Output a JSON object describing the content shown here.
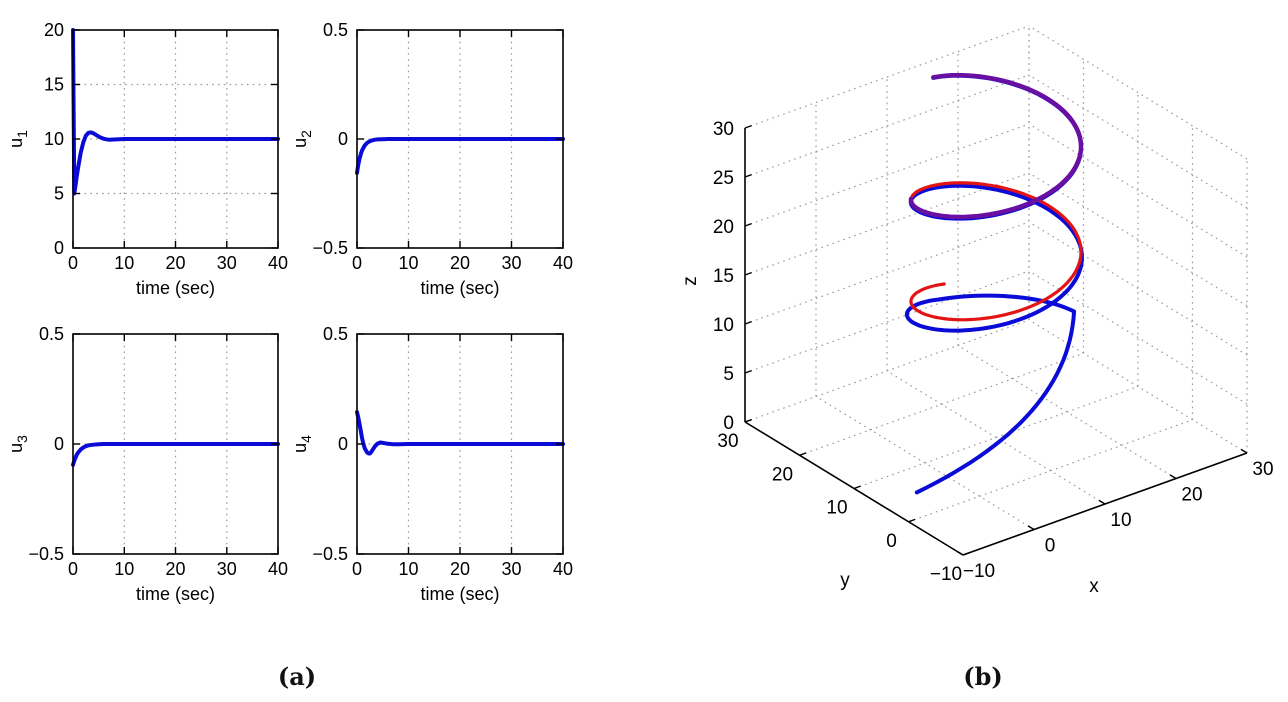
{
  "figure": {
    "background": "#ffffff",
    "captions": {
      "a": "(a)",
      "b": "(b)"
    },
    "colors": {
      "trajectory_blue": "#0b0bd8",
      "reference_red": "#e31414",
      "overlap_purple": "#690fa2",
      "grid_dotted": "#9a9a9a",
      "axis_black": "#000000"
    }
  },
  "chart_data": [
    {
      "id": "u1",
      "type": "line",
      "xlabel": "time (sec)",
      "ylabel": "u_1",
      "ylabel_base": "u",
      "ylabel_sub": "1",
      "xlim": [
        0,
        40
      ],
      "ylim": [
        0,
        20
      ],
      "xticks": [
        0,
        10,
        20,
        30,
        40
      ],
      "yticks": [
        0,
        5,
        10,
        15,
        20
      ],
      "grid": "dotted",
      "series": [
        {
          "name": "u1",
          "color": "#0b0bd8",
          "points": [
            [
              0,
              20
            ],
            [
              0.25,
              5
            ],
            [
              0.5,
              5.8
            ],
            [
              0.75,
              6.6
            ],
            [
              1,
              7.37
            ],
            [
              1.5,
              8.73
            ],
            [
              2,
              9.7
            ],
            [
              2.5,
              10.29
            ],
            [
              3,
              10.57
            ],
            [
              3.5,
              10.61
            ],
            [
              4,
              10.52
            ],
            [
              4.5,
              10.38
            ],
            [
              5,
              10.23
            ],
            [
              5.5,
              10.11
            ],
            [
              6,
              10.02
            ],
            [
              6.5,
              9.97
            ],
            [
              7,
              9.94
            ],
            [
              8,
              9.95
            ],
            [
              9,
              9.98
            ],
            [
              10,
              10
            ],
            [
              12,
              10
            ],
            [
              15,
              10
            ],
            [
              20,
              10
            ],
            [
              25,
              10
            ],
            [
              30,
              10
            ],
            [
              35,
              10
            ],
            [
              40,
              10
            ]
          ]
        }
      ]
    },
    {
      "id": "u2",
      "type": "line",
      "xlabel": "time (sec)",
      "ylabel": "u_2",
      "ylabel_base": "u",
      "ylabel_sub": "2",
      "xlim": [
        0,
        40
      ],
      "ylim": [
        -0.5,
        0.5
      ],
      "xticks": [
        0,
        10,
        20,
        30,
        40
      ],
      "yticks": [
        -0.5,
        0,
        0.5
      ],
      "grid": "dotted",
      "series": [
        {
          "name": "u2",
          "color": "#0b0bd8",
          "points": [
            [
              0,
              -0.155
            ],
            [
              0.25,
              -0.118
            ],
            [
              0.5,
              -0.089
            ],
            [
              0.75,
              -0.068
            ],
            [
              1,
              -0.052
            ],
            [
              1.5,
              -0.03
            ],
            [
              2,
              -0.017
            ],
            [
              2.5,
              -0.01
            ],
            [
              3,
              -0.006
            ],
            [
              3.5,
              -0.003
            ],
            [
              4,
              -0.002
            ],
            [
              5,
              -0.001
            ],
            [
              6,
              0
            ],
            [
              8,
              0
            ],
            [
              10,
              0
            ],
            [
              15,
              0
            ],
            [
              20,
              0
            ],
            [
              25,
              0
            ],
            [
              30,
              0
            ],
            [
              35,
              0
            ],
            [
              40,
              0
            ]
          ]
        }
      ]
    },
    {
      "id": "u3",
      "type": "line",
      "xlabel": "time (sec)",
      "ylabel": "u_3",
      "ylabel_base": "u",
      "ylabel_sub": "3",
      "xlim": [
        0,
        40
      ],
      "ylim": [
        -0.5,
        0.5
      ],
      "xticks": [
        0,
        10,
        20,
        30,
        40
      ],
      "yticks": [
        -0.5,
        0,
        0.5
      ],
      "grid": "dotted",
      "series": [
        {
          "name": "u3",
          "color": "#0b0bd8",
          "points": [
            [
              0,
              -0.095
            ],
            [
              0.25,
              -0.076
            ],
            [
              0.5,
              -0.061
            ],
            [
              0.75,
              -0.048
            ],
            [
              1,
              -0.039
            ],
            [
              1.5,
              -0.025
            ],
            [
              2,
              -0.016
            ],
            [
              2.5,
              -0.01
            ],
            [
              3,
              -0.006
            ],
            [
              4,
              -0.003
            ],
            [
              5,
              -0.001
            ],
            [
              6,
              0
            ],
            [
              8,
              0
            ],
            [
              10,
              0
            ],
            [
              15,
              0
            ],
            [
              20,
              0
            ],
            [
              25,
              0
            ],
            [
              30,
              0
            ],
            [
              35,
              0
            ],
            [
              40,
              0
            ]
          ]
        }
      ]
    },
    {
      "id": "u4",
      "type": "line",
      "xlabel": "time (sec)",
      "ylabel": "u_4",
      "ylabel_base": "u",
      "ylabel_sub": "4",
      "xlim": [
        0,
        40
      ],
      "ylim": [
        -0.5,
        0.5
      ],
      "xticks": [
        0,
        10,
        20,
        30,
        40
      ],
      "yticks": [
        -0.5,
        0,
        0.5
      ],
      "grid": "dotted",
      "series": [
        {
          "name": "u4",
          "color": "#0b0bd8",
          "points": [
            [
              0,
              0.145
            ],
            [
              0.25,
              0.12
            ],
            [
              0.5,
              0.089
            ],
            [
              0.75,
              0.057
            ],
            [
              1,
              0.026
            ],
            [
              1.25,
              0.001
            ],
            [
              1.5,
              -0.019
            ],
            [
              1.75,
              -0.03
            ],
            [
              2,
              -0.039
            ],
            [
              2.25,
              -0.043
            ],
            [
              2.5,
              -0.043
            ],
            [
              2.75,
              -0.037
            ],
            [
              3,
              -0.028
            ],
            [
              3.5,
              -0.01
            ],
            [
              4,
              0.002
            ],
            [
              4.5,
              0.007
            ],
            [
              5,
              0.005
            ],
            [
              5.5,
              0.003
            ],
            [
              6,
              0.001
            ],
            [
              7,
              -0.001
            ],
            [
              8,
              -0.001
            ],
            [
              10,
              0
            ],
            [
              15,
              0
            ],
            [
              20,
              0
            ],
            [
              25,
              0
            ],
            [
              30,
              0
            ],
            [
              35,
              0
            ],
            [
              40,
              0
            ]
          ]
        }
      ]
    },
    {
      "id": "traj3d",
      "type": "line3d",
      "xlabel": "x",
      "ylabel": "y",
      "zlabel": "z",
      "xlim": [
        -10,
        30
      ],
      "ylim": [
        -10,
        30
      ],
      "zlim": [
        0,
        30
      ],
      "xticks": [
        -10,
        0,
        10,
        20,
        30
      ],
      "yticks": [
        -10,
        0,
        10,
        20,
        30
      ],
      "zticks": [
        0,
        5,
        10,
        15,
        20,
        25,
        30
      ],
      "grid": "dotted",
      "view": {
        "note": "MATLAB default 3-D view (az -37.5 deg, el 30 deg)",
        "origin_world": [
          -10,
          -10,
          0
        ],
        "origin_screen": [
          963,
          555
        ],
        "ex_screen": [
          7.1,
          -2.55
        ],
        "ey_screen": [
          -5.45,
          -3.325
        ],
        "ez_screen": [
          0,
          -9.8
        ]
      },
      "curves": [
        {
          "name": "actual-trajectory",
          "color": "#0b0bd8",
          "width": 4,
          "kind": "tracking",
          "start_point": [
            -5,
            5,
            0
          ],
          "approach_control": [
            14,
            2,
            3.5
          ],
          "helix_center": [
            10,
            10
          ],
          "helix_radius": 9.5,
          "radial_overshoot": 1.5,
          "z_dip": 1.8,
          "theta_range_deg": [
            0,
            820
          ],
          "theta_total_deg": 820,
          "z_coeffs": [
            10,
            22,
            2
          ]
        },
        {
          "name": "reference-helix",
          "color": "#e31414",
          "width": 3.2,
          "kind": "helix",
          "helix_center": [
            10,
            10
          ],
          "helix_radius": 9.5,
          "theta_range_deg": [
            90,
            820
          ],
          "theta_total_deg": 820,
          "z_coeffs": [
            10,
            22,
            2
          ]
        },
        {
          "name": "overlap-section",
          "color": "#690fa2",
          "width": 4.5,
          "kind": "helix",
          "helix_center": [
            10,
            10
          ],
          "helix_radius": 9.5,
          "theta_range_deg": [
            500,
            820
          ],
          "theta_total_deg": 820,
          "z_coeffs": [
            10,
            22,
            2
          ]
        }
      ]
    }
  ]
}
